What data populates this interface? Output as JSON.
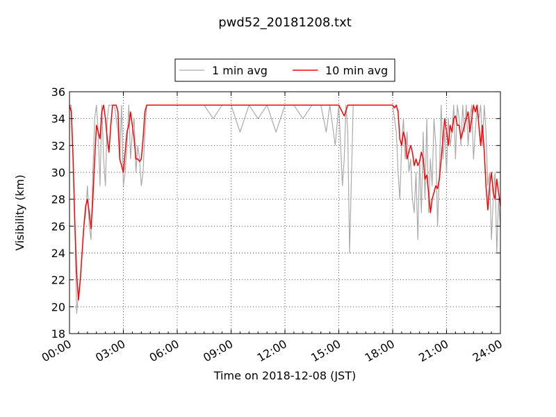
{
  "chart_data": {
    "type": "line",
    "title": "pwd52_20181208.txt",
    "xlabel": "Time on 2018-12-08 (JST)",
    "ylabel": "Visibility (km)",
    "xlim": [
      0,
      24
    ],
    "ylim": [
      18,
      36
    ],
    "x_tick_values": [
      0,
      3,
      6,
      9,
      12,
      15,
      18,
      21,
      24
    ],
    "x_tick_labels": [
      "00:00",
      "03:00",
      "06:00",
      "09:00",
      "12:00",
      "15:00",
      "18:00",
      "21:00",
      "24:00"
    ],
    "y_tick_values": [
      18,
      20,
      22,
      24,
      26,
      28,
      30,
      32,
      34,
      36
    ],
    "y_tick_labels": [
      "18",
      "20",
      "22",
      "24",
      "26",
      "28",
      "30",
      "32",
      "34",
      "36"
    ],
    "grid": true,
    "legend_position": "top-center",
    "series": [
      {
        "name": "1 min avg",
        "color": "#aaaaaa",
        "x": [
          0.0,
          0.1,
          0.2,
          0.3,
          0.4,
          0.5,
          0.6,
          0.7,
          0.8,
          0.9,
          1.0,
          1.1,
          1.2,
          1.3,
          1.4,
          1.5,
          1.6,
          1.7,
          1.8,
          1.9,
          2.0,
          2.1,
          2.2,
          2.3,
          2.4,
          2.5,
          2.6,
          2.7,
          2.8,
          2.9,
          3.0,
          3.1,
          3.2,
          3.3,
          3.4,
          3.5,
          3.6,
          3.7,
          3.8,
          3.9,
          4.0,
          4.1,
          4.2,
          4.3,
          4.5,
          5.0,
          5.5,
          6.0,
          6.5,
          7.0,
          7.5,
          8.0,
          8.5,
          9.0,
          9.5,
          10.0,
          10.5,
          11.0,
          11.5,
          12.0,
          12.5,
          13.0,
          13.5,
          14.0,
          14.3,
          14.5,
          14.8,
          15.0,
          15.2,
          15.3,
          15.4,
          15.5,
          15.6,
          15.8,
          16.0,
          16.5,
          17.0,
          17.5,
          18.0,
          18.1,
          18.2,
          18.3,
          18.4,
          18.5,
          18.6,
          18.7,
          18.8,
          18.9,
          19.0,
          19.1,
          19.2,
          19.3,
          19.4,
          19.5,
          19.6,
          19.7,
          19.8,
          19.9,
          20.0,
          20.1,
          20.2,
          20.3,
          20.4,
          20.5,
          20.6,
          20.7,
          20.8,
          20.9,
          21.0,
          21.1,
          21.2,
          21.3,
          21.4,
          21.5,
          21.6,
          21.7,
          21.8,
          21.9,
          22.0,
          22.1,
          22.2,
          22.3,
          22.4,
          22.5,
          22.6,
          22.7,
          22.8,
          22.9,
          23.0,
          23.1,
          23.2,
          23.3,
          23.4,
          23.5,
          23.6,
          23.7,
          23.8,
          23.9,
          24.0
        ],
        "y": [
          35,
          35,
          31,
          26,
          19.5,
          21,
          22,
          24,
          26,
          27,
          29,
          26,
          25,
          30,
          34,
          35,
          33,
          29,
          35,
          31,
          29,
          34,
          35,
          35,
          35,
          35,
          34,
          33,
          31,
          35,
          29,
          30,
          32,
          35,
          31,
          33,
          34,
          30,
          32,
          31,
          29,
          30,
          33,
          35,
          35,
          35,
          35,
          35,
          35,
          35,
          35,
          34,
          35,
          35,
          33,
          35,
          34,
          35,
          33,
          35,
          35,
          34,
          35,
          35,
          33,
          35,
          32,
          35,
          29,
          31,
          35,
          33,
          24,
          35,
          35,
          35,
          35,
          35,
          35,
          34,
          33,
          30,
          28,
          32,
          34,
          31,
          33,
          30,
          31,
          28,
          27,
          30,
          25,
          31,
          27,
          33,
          28,
          34,
          27,
          31,
          29,
          34,
          32,
          26,
          30,
          35,
          31,
          33,
          30,
          34,
          32,
          33,
          35,
          31,
          35,
          34,
          32,
          35,
          33,
          35,
          32,
          34,
          35,
          31,
          33,
          35,
          34,
          35,
          32,
          35,
          33,
          29,
          30,
          25,
          28,
          30,
          24,
          28,
          26
        ]
      },
      {
        "name": "10 min avg",
        "color": "#ff0000",
        "x": [
          0.0,
          0.1,
          0.2,
          0.3,
          0.4,
          0.5,
          0.6,
          0.7,
          0.8,
          0.9,
          1.0,
          1.1,
          1.2,
          1.3,
          1.4,
          1.5,
          1.6,
          1.7,
          1.8,
          1.9,
          2.0,
          2.1,
          2.2,
          2.3,
          2.4,
          2.5,
          2.6,
          2.7,
          2.8,
          2.9,
          3.0,
          3.1,
          3.2,
          3.3,
          3.4,
          3.5,
          3.6,
          3.7,
          3.8,
          3.9,
          4.0,
          4.1,
          4.2,
          4.3,
          4.5,
          5.0,
          6.0,
          9.0,
          12.0,
          15.0,
          15.3,
          15.5,
          16.0,
          17.0,
          18.0,
          18.1,
          18.2,
          18.3,
          18.4,
          18.5,
          18.6,
          18.7,
          18.8,
          18.9,
          19.0,
          19.1,
          19.2,
          19.3,
          19.4,
          19.5,
          19.6,
          19.7,
          19.8,
          19.9,
          20.0,
          20.1,
          20.2,
          20.3,
          20.4,
          20.5,
          20.6,
          20.7,
          20.8,
          20.9,
          21.0,
          21.1,
          21.2,
          21.3,
          21.4,
          21.5,
          21.6,
          21.7,
          21.8,
          21.9,
          22.0,
          22.1,
          22.2,
          22.3,
          22.4,
          22.5,
          22.6,
          22.7,
          22.8,
          22.9,
          23.0,
          23.1,
          23.2,
          23.3,
          23.4,
          23.5,
          23.6,
          23.7,
          23.8,
          23.9,
          24.0
        ],
        "y": [
          35,
          34.5,
          31,
          26,
          22.5,
          20.5,
          22,
          24,
          26,
          27.5,
          28,
          27,
          25.8,
          28,
          31,
          33.5,
          33,
          32.5,
          34.5,
          35,
          34,
          32.5,
          31.5,
          33.5,
          35,
          35,
          35,
          34.5,
          31,
          30.5,
          30,
          31.5,
          33,
          33.5,
          34.5,
          33.5,
          32.5,
          31,
          31,
          30.8,
          31,
          32.5,
          34.5,
          35,
          35,
          35,
          35,
          35,
          35,
          35,
          34.2,
          35,
          35,
          35,
          35,
          34.8,
          35,
          34.5,
          32.5,
          32,
          33,
          32.5,
          31,
          31.5,
          32,
          31.5,
          30.5,
          31,
          30.5,
          30.8,
          31.5,
          31,
          29.5,
          29.8,
          28.5,
          27,
          28,
          28.5,
          29,
          28.8,
          29.5,
          31,
          32.5,
          34,
          33,
          32,
          33.5,
          33,
          34,
          34.2,
          33.5,
          33.5,
          32.5,
          33,
          33.5,
          34,
          34.5,
          33,
          34,
          35,
          34.5,
          35,
          33.5,
          32,
          33.5,
          31.5,
          29,
          27.2,
          29,
          30,
          28.5,
          28,
          29.5,
          28.5,
          27.5
        ]
      }
    ]
  }
}
